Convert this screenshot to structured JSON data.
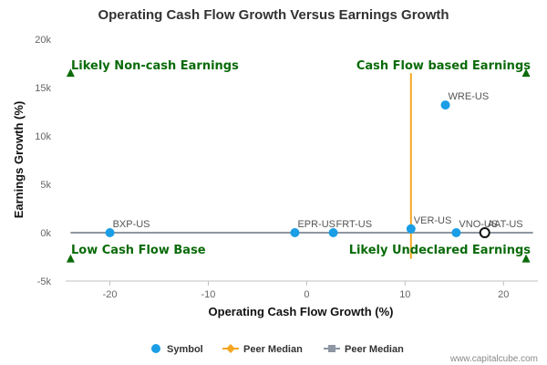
{
  "chart_data": {
    "type": "scatter",
    "title": "Operating Cash Flow Growth Versus Earnings Growth",
    "xlabel": "Operating Cash Flow Growth (%)",
    "ylabel": "Earnings Growth (%)",
    "xlim": [
      -24.5,
      23.5
    ],
    "ylim": [
      -5000,
      20000
    ],
    "x_ticks": [
      {
        "value": -20,
        "label": "-20"
      },
      {
        "value": -10,
        "label": "-10"
      },
      {
        "value": 0,
        "label": "0"
      },
      {
        "value": 10,
        "label": "10"
      },
      {
        "value": 20,
        "label": "20"
      }
    ],
    "y_ticks": [
      {
        "value": 20000,
        "label": "20k"
      },
      {
        "value": 15000,
        "label": "15k"
      },
      {
        "value": 10000,
        "label": "10k"
      },
      {
        "value": 5000,
        "label": "5k"
      },
      {
        "value": 0,
        "label": "0k"
      },
      {
        "value": -5000,
        "label": "-5k"
      }
    ],
    "grid": false,
    "legend_position": "bottom",
    "series": [
      {
        "name": "Symbol",
        "color": "#1a9ee6",
        "points": [
          {
            "label": "BXP-US",
            "x": -20.0,
            "y": 0
          },
          {
            "label": "EPR-US",
            "x": -1.2,
            "y": 0
          },
          {
            "label": "FRT-US",
            "x": 2.7,
            "y": 0
          },
          {
            "label": "VER-US",
            "x": 10.6,
            "y": 400
          },
          {
            "label": "VNO-US",
            "x": 15.2,
            "y": 0
          },
          {
            "label": "WRE-US",
            "x": 14.1,
            "y": 13200
          }
        ],
        "highlight": {
          "label": "AAT-US",
          "x": 18.1,
          "y": 0
        }
      },
      {
        "name": "Peer Median",
        "color": "#f5a623",
        "orientation": "vertical",
        "x": 10.6,
        "y_range": [
          -2700,
          16500
        ]
      },
      {
        "name": "Peer Median",
        "color": "#8e96a3",
        "orientation": "horizontal",
        "y": 0,
        "x_range": [
          -24.0,
          23.0
        ]
      }
    ],
    "quadrant_labels": [
      {
        "text": "Likely Non-cash Earnings",
        "corner": "top-left"
      },
      {
        "text": "Cash Flow based Earnings",
        "corner": "top-right"
      },
      {
        "text": "Low Cash Flow Base",
        "corner": "bottom-left"
      },
      {
        "text": "Likely Undeclared Earnings",
        "corner": "bottom-right"
      }
    ],
    "quadrant_markers": [
      {
        "x": -24.0,
        "y": 16500,
        "corner": "top-left"
      },
      {
        "x": 22.3,
        "y": 16500,
        "corner": "top-right"
      },
      {
        "x": -24.0,
        "y": -2700,
        "corner": "bottom-left"
      },
      {
        "x": 22.3,
        "y": -2700,
        "corner": "bottom-right"
      }
    ],
    "marker_color": "#0a6b0a"
  },
  "credit": "www.capitalcube.com"
}
